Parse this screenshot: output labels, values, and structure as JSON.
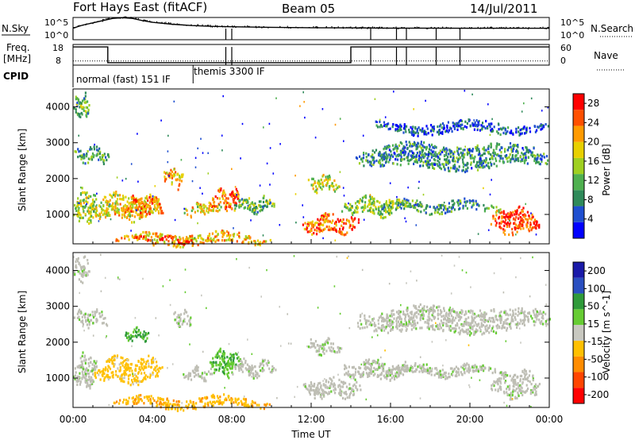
{
  "header": {
    "station": "Fort Hays East (fitACF)",
    "beam": "Beam 05",
    "date": "14/Jul/2011"
  },
  "side_labels": {
    "nsky": "N.Sky",
    "nsky_hi": "10^5",
    "nsky_lo": "10^0",
    "nsearch": "N.Search",
    "nsearch_hi": "10^5",
    "nsearch_lo": "10^0",
    "freq_line1": "Freq.",
    "freq_line2": "[MHz]",
    "freq_hi": "18",
    "freq_lo": "8",
    "nave": "Nave",
    "nave_hi": "60",
    "nave_lo": "0",
    "cpid": "CPID"
  },
  "cpid_segments": [
    {
      "label": "normal (fast) 151 IF",
      "start_hour": 0
    },
    {
      "label": "themis 3300 IF",
      "start_hour": 6.05
    }
  ],
  "colors": {
    "power": [
      "#0000ff",
      "#1f4fd0",
      "#2f8a5a",
      "#4fb04f",
      "#9fd020",
      "#e8d000",
      "#ff9a00",
      "#ff5000",
      "#ff0000"
    ],
    "velocity": [
      "#1a1aa8",
      "#2a4fc0",
      "#2f9a3a",
      "#66cc33",
      "#c8c8c0",
      "#ffc000",
      "#ff8c00",
      "#ff4500",
      "#ff0000"
    ],
    "ground_scatter": "#bebeb4"
  },
  "chart_data": [
    {
      "type": "line",
      "panel": "noise",
      "series": [
        {
          "name": "N.Sky",
          "x": [
            0,
            0.5,
            1,
            1.5,
            2,
            2.5,
            3,
            3.5,
            4,
            5,
            6,
            7,
            8,
            10,
            12,
            14,
            16,
            18,
            20,
            22,
            24
          ],
          "values": [
            400,
            2000,
            6000,
            20000,
            60000,
            90000,
            60000,
            20000,
            8000,
            3000,
            1500,
            1000,
            800,
            600,
            500,
            450,
            400,
            400,
            380,
            380,
            380
          ]
        },
        {
          "name": "N.Search",
          "x": [
            0,
            24
          ],
          "values": [
            1,
            1
          ]
        }
      ],
      "ylim": [
        1,
        100000
      ],
      "log": true,
      "ytick_labels": [
        "10^0",
        "10^5"
      ],
      "events_hours": [
        7.7,
        8.0,
        15.0,
        16.3,
        16.8,
        18.3,
        19.5
      ]
    },
    {
      "type": "line",
      "panel": "frequency",
      "series": [
        {
          "name": "Freq.",
          "x": [
            0,
            1.75,
            1.75,
            14.0,
            14.0,
            24
          ],
          "values": [
            16.8,
            16.8,
            9.2,
            9.2,
            16.8,
            16.8
          ]
        },
        {
          "name": "Nave",
          "x": [
            0,
            24
          ],
          "values": [
            12,
            12
          ]
        }
      ],
      "ylim": [
        8,
        18
      ],
      "y2lim": [
        0,
        60
      ],
      "events_hours": [
        7.7,
        8.0,
        15.0,
        16.3,
        16.8,
        18.3,
        19.5
      ]
    },
    {
      "type": "heatmap",
      "panel": "power",
      "xlabel": "",
      "ylabel": "Slant Range [km]",
      "xlim": [
        0,
        24
      ],
      "ylim": [
        180,
        4500
      ],
      "yticks": [
        1000,
        2000,
        3000,
        4000
      ],
      "colorbar": {
        "label": "Power [dB]",
        "ticks": [
          4,
          8,
          12,
          16,
          20,
          24,
          28
        ],
        "range": [
          0,
          30
        ]
      },
      "regions": [
        {
          "t": [
            0.0,
            1.2
          ],
          "r": [
            800,
            1700
          ],
          "v": 15
        },
        {
          "t": [
            1.0,
            4.5
          ],
          "r": [
            900,
            1600
          ],
          "v": 18
        },
        {
          "t": [
            2.5,
            4.5
          ],
          "r": [
            1000,
            1500
          ],
          "v": 24
        },
        {
          "t": [
            0.0,
            0.8
          ],
          "r": [
            3700,
            4400
          ],
          "v": 12
        },
        {
          "t": [
            0.0,
            1.8
          ],
          "r": [
            2500,
            2900
          ],
          "v": 10
        },
        {
          "t": [
            4.5,
            5.5
          ],
          "r": [
            1800,
            2300
          ],
          "v": 20
        },
        {
          "t": [
            5.5,
            7.5
          ],
          "r": [
            1000,
            1300
          ],
          "v": 18
        },
        {
          "t": [
            6.8,
            8.5
          ],
          "r": [
            1200,
            1700
          ],
          "v": 24
        },
        {
          "t": [
            8.0,
            10.2
          ],
          "r": [
            1100,
            1500
          ],
          "v": 12
        },
        {
          "t": [
            2.0,
            10.0
          ],
          "r": [
            200,
            500
          ],
          "v": 20
        },
        {
          "t": [
            3.0,
            6.0
          ],
          "r": [
            250,
            400
          ],
          "v": 28
        },
        {
          "t": [
            11.8,
            13.5
          ],
          "r": [
            1700,
            2100
          ],
          "v": 16
        },
        {
          "t": [
            11.5,
            14.5
          ],
          "r": [
            500,
            1000
          ],
          "v": 24
        },
        {
          "t": [
            13.5,
            17.0
          ],
          "r": [
            1000,
            1500
          ],
          "v": 14
        },
        {
          "t": [
            14.2,
            24.0
          ],
          "r": [
            2300,
            3000
          ],
          "v": 9
        },
        {
          "t": [
            15.5,
            21.5
          ],
          "r": [
            1100,
            1400
          ],
          "v": 10
        },
        {
          "t": [
            21.0,
            23.5
          ],
          "r": [
            500,
            1200
          ],
          "v": 26
        },
        {
          "t": [
            15.0,
            24.0
          ],
          "r": [
            3300,
            3600
          ],
          "v": 5
        }
      ]
    },
    {
      "type": "heatmap",
      "panel": "velocity",
      "xlabel": "Time UT",
      "ylabel": "Slant Range [km]",
      "xlim": [
        0,
        24
      ],
      "ylim": [
        180,
        4500
      ],
      "xtick_labels": [
        "00:00",
        "04:00",
        "08:00",
        "12:00",
        "16:00",
        "20:00",
        "00:00"
      ],
      "yticks": [
        1000,
        2000,
        3000,
        4000
      ],
      "colorbar": {
        "label": "Velocity [m s^-1]",
        "ticks": [
          200,
          100,
          50,
          15,
          -15,
          -50,
          -100,
          -200
        ]
      },
      "regions": [
        {
          "t": [
            0.0,
            1.2
          ],
          "r": [
            800,
            1700
          ],
          "v": 0
        },
        {
          "t": [
            1.0,
            4.5
          ],
          "r": [
            900,
            1600
          ],
          "v": -30
        },
        {
          "t": [
            0.0,
            0.8
          ],
          "r": [
            3700,
            4400
          ],
          "v": 0
        },
        {
          "t": [
            0.0,
            1.8
          ],
          "r": [
            2500,
            2900
          ],
          "v": 0
        },
        {
          "t": [
            5.0,
            6.0
          ],
          "r": [
            2500,
            2900
          ],
          "v": 0
        },
        {
          "t": [
            2.5,
            4.0
          ],
          "r": [
            2100,
            2400
          ],
          "v": 60
        },
        {
          "t": [
            5.5,
            7.2
          ],
          "r": [
            1000,
            1300
          ],
          "v": 0
        },
        {
          "t": [
            6.8,
            8.5
          ],
          "r": [
            1100,
            1800
          ],
          "v": 40
        },
        {
          "t": [
            8.0,
            10.2
          ],
          "r": [
            1100,
            1500
          ],
          "v": 0
        },
        {
          "t": [
            2.0,
            10.0
          ],
          "r": [
            200,
            500
          ],
          "v": -40
        },
        {
          "t": [
            11.8,
            13.5
          ],
          "r": [
            1700,
            2100
          ],
          "v": 0
        },
        {
          "t": [
            11.5,
            14.5
          ],
          "r": [
            500,
            1000
          ],
          "v": 0
        },
        {
          "t": [
            13.5,
            17.0
          ],
          "r": [
            1000,
            1500
          ],
          "v": 0
        },
        {
          "t": [
            14.2,
            24.0
          ],
          "r": [
            2300,
            3000
          ],
          "v": 0
        },
        {
          "t": [
            15.5,
            21.5
          ],
          "r": [
            1100,
            1400
          ],
          "v": 0
        },
        {
          "t": [
            21.0,
            23.5
          ],
          "r": [
            500,
            1200
          ],
          "v": 0
        }
      ]
    }
  ]
}
